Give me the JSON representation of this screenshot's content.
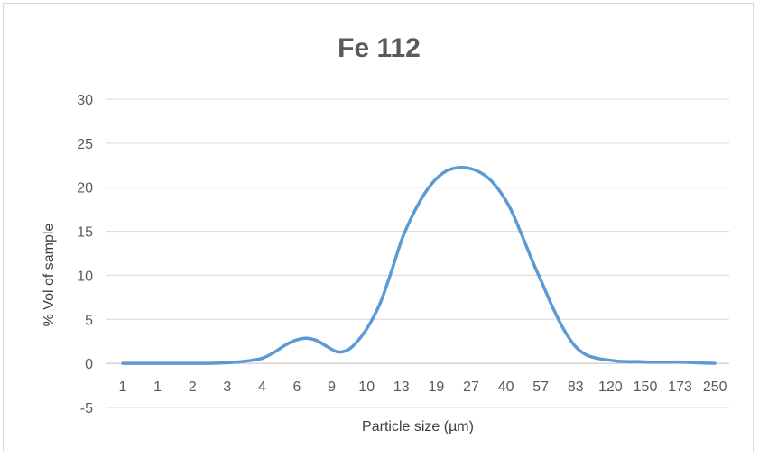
{
  "chart_data": {
    "type": "line",
    "title": "Fe 112",
    "xlabel": "Particle size (µm)",
    "ylabel": "% Vol of sample",
    "ylim": [
      -5,
      30
    ],
    "yticks": [
      -5,
      0,
      5,
      10,
      15,
      20,
      25,
      30
    ],
    "grid": true,
    "legend": "none",
    "x_tick_labels": [
      "1",
      "1",
      "2",
      "3",
      "4",
      "6",
      "9",
      "10",
      "13",
      "19",
      "27",
      "40",
      "57",
      "83",
      "120",
      "150",
      "173",
      "250"
    ],
    "series": [
      {
        "color": "#5b9bd5",
        "values": [
          0,
          0,
          0,
          0,
          0,
          0,
          0,
          0,
          0,
          0.05,
          0.1,
          0.2,
          0.35,
          0.6,
          1.2,
          2.0,
          2.6,
          2.85,
          2.6,
          1.9,
          1.3,
          1.6,
          2.8,
          4.6,
          7.1,
          10.6,
          14.3,
          17.0,
          19.2,
          20.8,
          21.8,
          22.2,
          22.2,
          21.8,
          21.0,
          19.6,
          17.6,
          14.8,
          11.8,
          9.0,
          6.2,
          3.8,
          2.0,
          1.0,
          0.6,
          0.4,
          0.25,
          0.2,
          0.2,
          0.15,
          0.15,
          0.15,
          0.15,
          0.1,
          0.05,
          0
        ]
      }
    ]
  }
}
